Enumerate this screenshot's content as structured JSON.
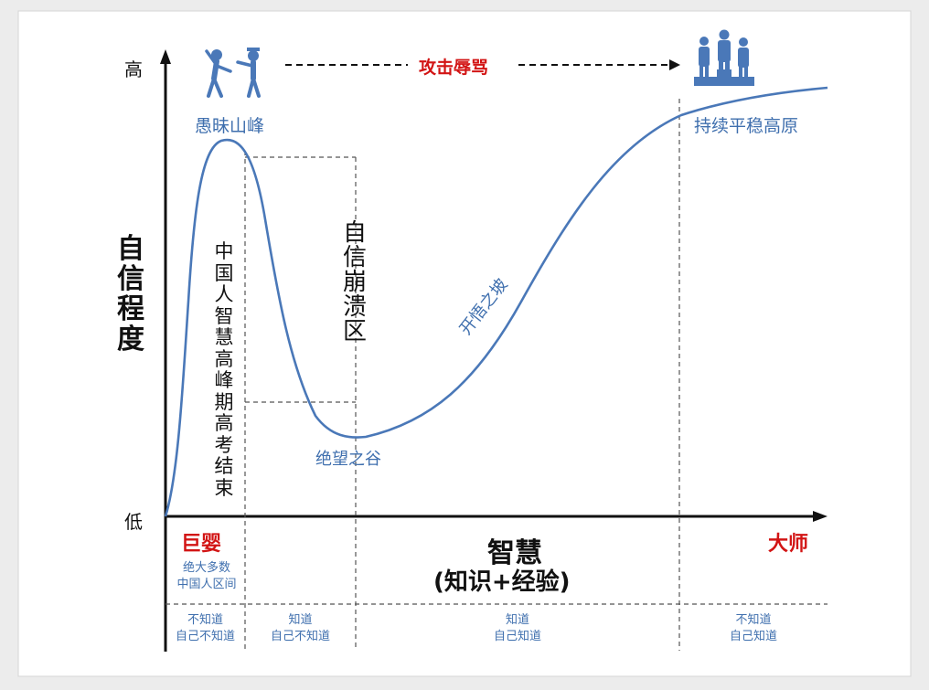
{
  "y_axis": {
    "title": "自信程度",
    "high_label": "高",
    "low_label": "低"
  },
  "x_axis": {
    "start_label": "巨婴",
    "center_label": "智慧",
    "center_sub_label": "(知识+经验)",
    "end_label": "大师",
    "start_note": "绝大多数\n中国人区间"
  },
  "curve": {
    "peak_label": "愚昧山峰",
    "valley_label": "绝望之谷",
    "slope_label": "开悟之坡",
    "plateau_label": "持续平稳高原"
  },
  "annotations": {
    "vertical_note_1": "中国人智慧高峰期高考结束",
    "vertical_note_2": "自信崩溃区",
    "attack_label": "攻击辱骂"
  },
  "icons": {
    "left": "people-fighting-icon",
    "right": "people-on-podium-icon"
  },
  "stages": [
    {
      "line1": "不知道",
      "line2": "自己不知道"
    },
    {
      "line1": "知道",
      "line2": "自己不知道"
    },
    {
      "line1": "知道",
      "line2": "自己知道"
    },
    {
      "line1": "不知道",
      "line2": "自己知道"
    }
  ],
  "colors": {
    "curve": "#4a78b8",
    "blue_text": "#3f6fae",
    "red_text": "#d21414",
    "axis": "#111111",
    "guide": "#555555"
  }
}
